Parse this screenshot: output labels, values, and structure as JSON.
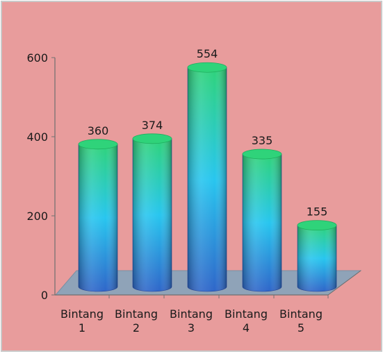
{
  "chart_data": {
    "type": "bar",
    "style": "3d-cylinder",
    "categories": [
      "Bintang\n1",
      "Bintang\n2",
      "Bintang\n3",
      "Bintang\n4",
      "Bintang\n5"
    ],
    "values": [
      360,
      374,
      554,
      335,
      155
    ],
    "data_labels": [
      "360",
      "374",
      "554",
      "335",
      "155"
    ],
    "y_ticks": [
      "0",
      "200",
      "400",
      "600"
    ],
    "ylim": [
      0,
      600
    ],
    "title": "",
    "xlabel": "",
    "ylabel": "",
    "grid": false,
    "legend": "none"
  },
  "colors": {
    "background": "#e89c9c",
    "frame_border": "#c9c9c9",
    "floor": "#8fa3b8",
    "axis": "#6f6f6f",
    "text": "#1a1a1a",
    "cylinder_top": "#2fd37a",
    "cylinder_mid": "#28c6ef",
    "cylinder_bottom": "#2f66c9",
    "cylinder_edge": "#1f3f9a"
  }
}
